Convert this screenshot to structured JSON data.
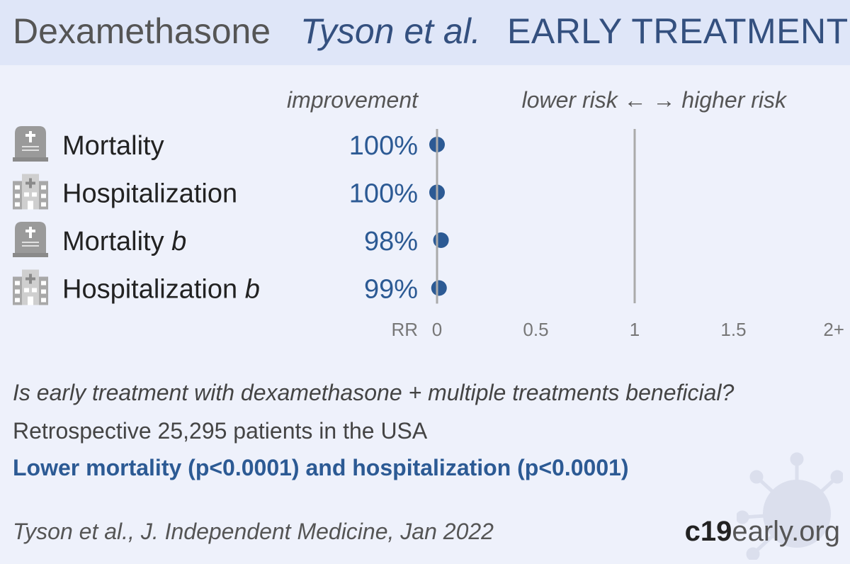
{
  "header": {
    "drug": "Dexamethasone",
    "study": "Tyson et al.",
    "stage": "EARLY TREATMENT"
  },
  "chart_data": {
    "type": "scatter",
    "column_labels": {
      "improvement": "improvement",
      "direction": "lower risk ← → higher risk"
    },
    "rows": [
      {
        "label": "Mortality",
        "italic_suffix": "",
        "icon": "tombstone-icon",
        "improvement": "100%",
        "rr": 0.0
      },
      {
        "label": "Hospitalization",
        "italic_suffix": "",
        "icon": "hospital-icon",
        "improvement": "100%",
        "rr": 0.0
      },
      {
        "label": "Mortality ",
        "italic_suffix": "b",
        "icon": "tombstone-icon",
        "improvement": "98%",
        "rr": 0.02
      },
      {
        "label": "Hospitalization ",
        "italic_suffix": "b",
        "icon": "hospital-icon",
        "improvement": "99%",
        "rr": 0.01
      }
    ],
    "x_axis": {
      "label": "RR",
      "ticks": [
        {
          "value": 0,
          "label": "0"
        },
        {
          "value": 0.5,
          "label": "0.5"
        },
        {
          "value": 1,
          "label": "1"
        },
        {
          "value": 1.5,
          "label": "1.5"
        },
        {
          "value": 2,
          "label": "2+"
        }
      ],
      "range": [
        0,
        2
      ]
    },
    "reference_line": 1,
    "colors": {
      "point": "#2c5a94",
      "axis": "#aaaaaa",
      "label": "#2c5a94"
    }
  },
  "summary": {
    "question": "Is early treatment with dexamethasone + multiple treatments beneficial?",
    "design": "Retrospective 25,295 patients in the USA",
    "conclusion": "Lower mortality (p<0.0001) and hospitalization (p<0.0001)",
    "citation": "Tyson et al., J. Independent Medicine, Jan 2022"
  },
  "brand": {
    "bold": "c19",
    "rest": "early.org"
  }
}
